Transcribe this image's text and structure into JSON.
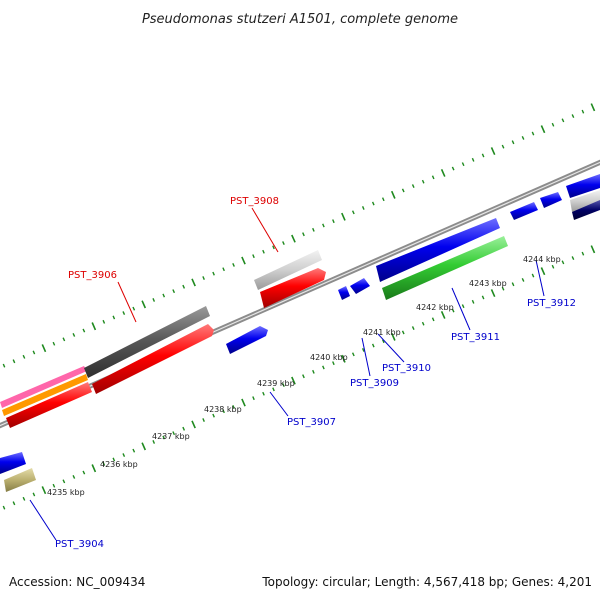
{
  "title": "Pseudomonas stutzeri A1501, complete genome",
  "footer": {
    "accession": "Accession: NC_009434",
    "summary": "Topology: circular; Length: 4,567,418 bp; Genes: 4,201"
  },
  "scale_labels": [
    "4235 kbp",
    "4236 kbp",
    "4237 kbp",
    "4238 kbp",
    "4239 kbp",
    "4240 kbp",
    "4241 kbp",
    "4242 kbp",
    "4243 kbp",
    "4244 kbp"
  ],
  "gene_labels": [
    {
      "text": "PST_3906",
      "color": "#dd0000"
    },
    {
      "text": "PST_3908",
      "color": "#dd0000"
    },
    {
      "text": "PST_3907",
      "color": "#0000cc"
    },
    {
      "text": "PST_3909",
      "color": "#0000cc"
    },
    {
      "text": "PST_3910",
      "color": "#0000cc"
    },
    {
      "text": "PST_3911",
      "color": "#0000cc"
    },
    {
      "text": "PST_3912",
      "color": "#0000cc"
    },
    {
      "text": "PST_3904",
      "color": "#0000cc"
    }
  ],
  "colors": {
    "backbone": "#8c8c8c",
    "ticks": "#1f8a1f",
    "red_cds": "#ff0000",
    "blue_cds": "#0000ee",
    "green_cds": "#33cc33",
    "grey_dark": "#555555",
    "grey_light": "#cccccc",
    "olive": "#bbb070",
    "pink": "#ff66aa",
    "orange": "#ff9900",
    "navy": "#000066"
  }
}
